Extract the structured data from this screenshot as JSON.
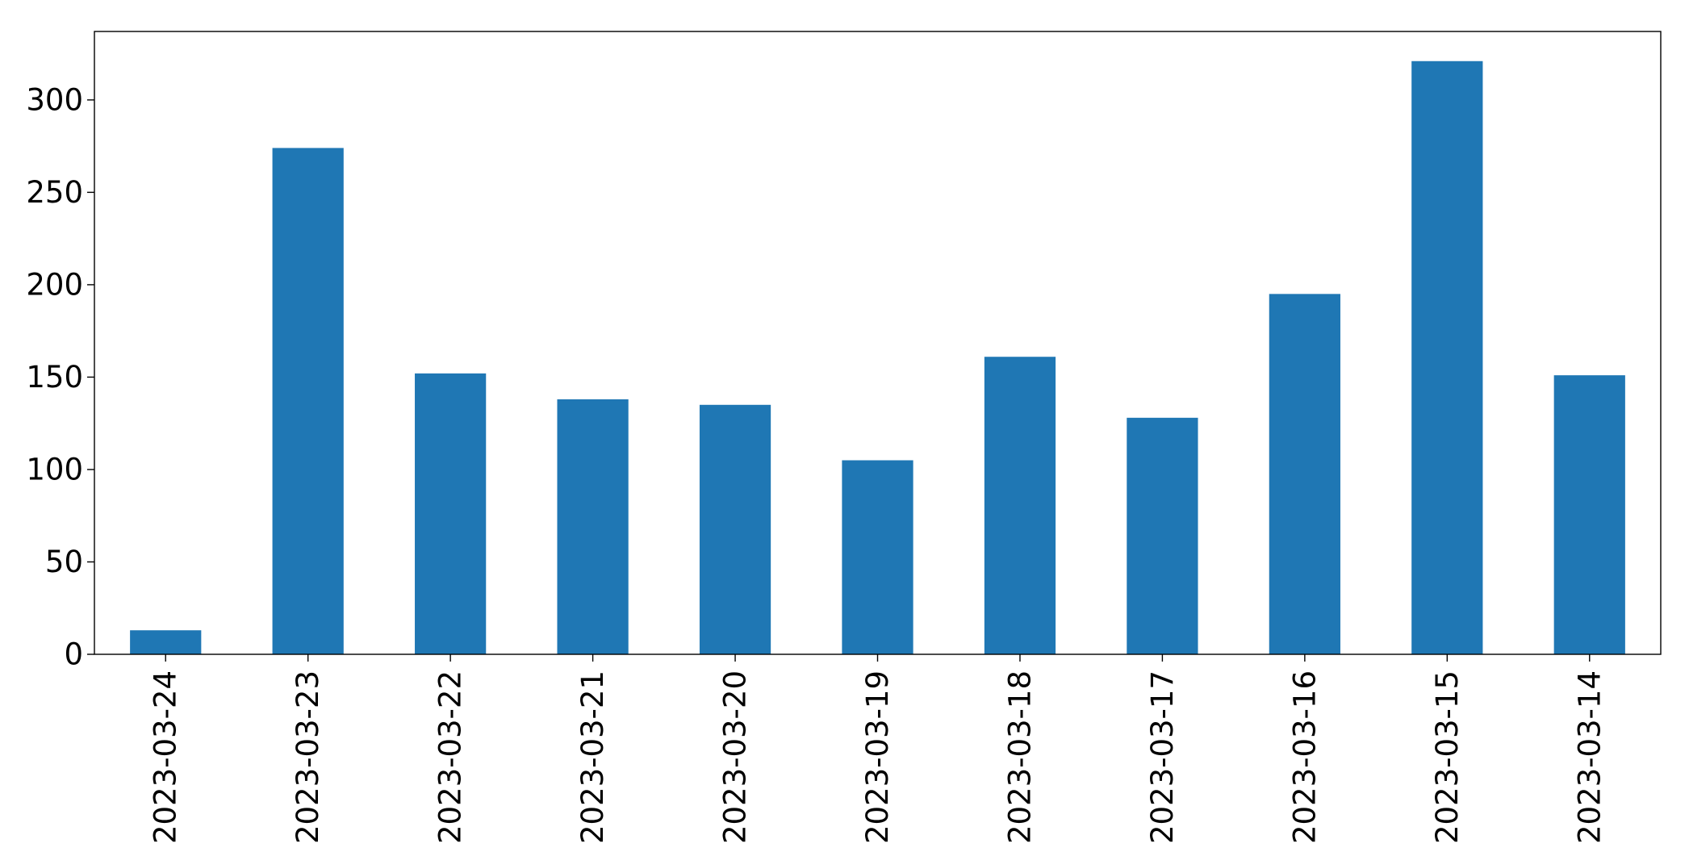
{
  "chart_data": {
    "type": "bar",
    "title": "",
    "xlabel": "",
    "ylabel": "",
    "categories": [
      "2023-03-24",
      "2023-03-23",
      "2023-03-22",
      "2023-03-21",
      "2023-03-20",
      "2023-03-19",
      "2023-03-18",
      "2023-03-17",
      "2023-03-16",
      "2023-03-15",
      "2023-03-14"
    ],
    "values": [
      13,
      274,
      152,
      138,
      135,
      105,
      161,
      128,
      195,
      321,
      151
    ],
    "ylim": [
      0,
      337.05
    ],
    "yticks": [
      0,
      50,
      100,
      150,
      200,
      250,
      300
    ],
    "grid": false,
    "legend": "none",
    "colors": {
      "bar": "#1f77b4",
      "axis": "#000000",
      "background": "#ffffff"
    }
  }
}
